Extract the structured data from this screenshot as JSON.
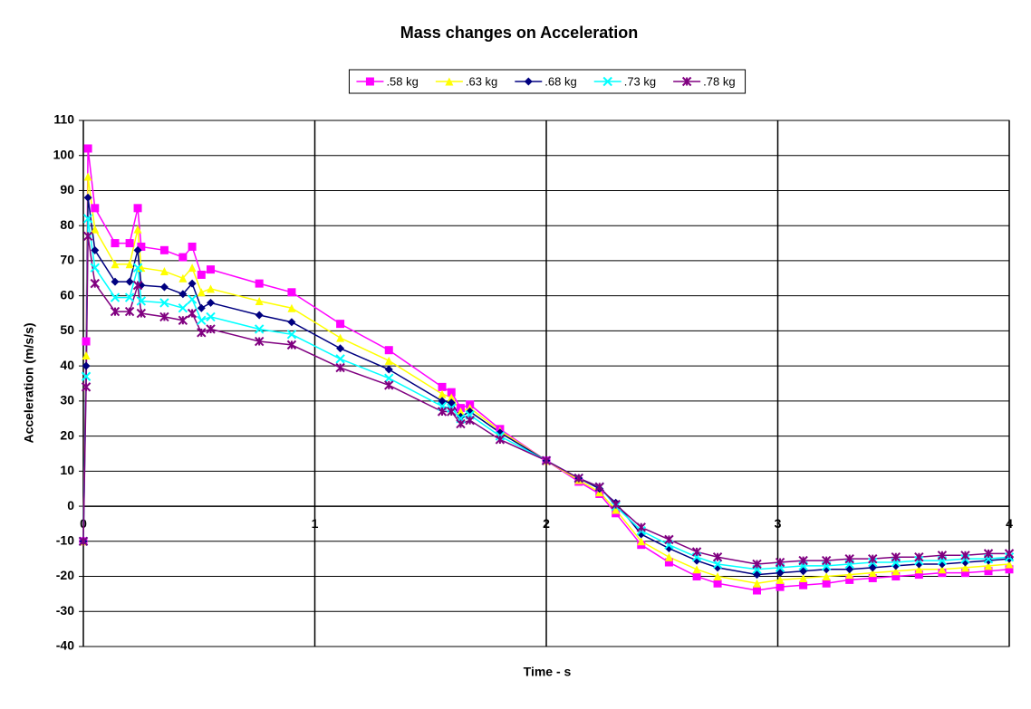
{
  "chart_data": {
    "type": "line",
    "title": "Mass changes on Acceleration",
    "x_label": "Time - s",
    "y_label": "Acceleration (m/s/s)",
    "x": [
      0,
      0.012,
      0.02,
      0.05,
      0.137,
      0.2,
      0.235,
      0.25,
      0.35,
      0.43,
      0.47,
      0.51,
      0.55,
      0.76,
      0.9,
      1.11,
      1.32,
      1.55,
      1.59,
      1.63,
      1.67,
      1.8,
      2.0,
      2.14,
      2.23,
      2.3,
      2.41,
      2.53,
      2.65,
      2.74,
      2.91,
      3.01,
      3.11,
      3.21,
      3.31,
      3.41,
      3.51,
      3.61,
      3.71,
      3.81,
      3.91,
      4.0
    ],
    "series": [
      {
        "name": ".58 kg",
        "color": "#ff00ff",
        "marker": "square",
        "values": [
          -10,
          47,
          102,
          85,
          75,
          75,
          85,
          74,
          73,
          71,
          74,
          66,
          67.5,
          63.5,
          61,
          52,
          44.5,
          34,
          32.5,
          28,
          29,
          22,
          13,
          7,
          3.5,
          -2,
          -11,
          -16,
          -20,
          -22,
          -24,
          -23,
          -22.5,
          -22,
          -21,
          -20.5,
          -20,
          -19.5,
          -19,
          -19,
          -18.5,
          -18
        ]
      },
      {
        "name": ".63 kg",
        "color": "#ffff00",
        "marker": "triangle",
        "values": [
          -10,
          43,
          94,
          79,
          69,
          69,
          79,
          68,
          67,
          65,
          68,
          61,
          62,
          58.5,
          56.5,
          48,
          41.5,
          32,
          31,
          27,
          28,
          21.5,
          13,
          7.5,
          4,
          -1,
          -10,
          -14.5,
          -18,
          -20,
          -22,
          -21,
          -20.5,
          -20,
          -19.5,
          -19,
          -18.5,
          -18,
          -18,
          -17.5,
          -17,
          -16.5
        ]
      },
      {
        "name": ".68 kg",
        "color": "#000080",
        "marker": "diamond",
        "values": [
          -10,
          40,
          88,
          73,
          64,
          64,
          73,
          63,
          62.5,
          60.5,
          63.5,
          56.5,
          58,
          54.5,
          52.5,
          45,
          39,
          30,
          29.5,
          25.5,
          27,
          21,
          13,
          8,
          5,
          1,
          -8,
          -12,
          -15.5,
          -17.5,
          -19.5,
          -19,
          -18.5,
          -18,
          -18,
          -17.5,
          -17,
          -16.5,
          -16.5,
          -16,
          -15.5,
          -15
        ]
      },
      {
        "name": ".73 kg",
        "color": "#00ffff",
        "marker": "x",
        "values": [
          -10,
          37,
          82,
          68,
          59.5,
          59.5,
          68,
          58.5,
          58,
          56.5,
          59,
          53,
          54,
          50.5,
          49,
          42,
          36.5,
          28.5,
          28,
          25,
          26,
          20,
          13,
          8,
          5.5,
          0,
          -7,
          -11,
          -14.5,
          -16.5,
          -18,
          -17.5,
          -17,
          -17,
          -16.5,
          -16,
          -16,
          -15.5,
          -15.5,
          -15,
          -15,
          -14.5
        ]
      },
      {
        "name": ".78 kg",
        "color": "#800080",
        "marker": "star",
        "values": [
          -10,
          34,
          77,
          63.5,
          55.5,
          55.5,
          63,
          55,
          54,
          53,
          55,
          49.5,
          50.5,
          47,
          46,
          39.5,
          34.5,
          27,
          27,
          23.5,
          24.5,
          19,
          13,
          8,
          5.5,
          0.5,
          -6,
          -9.5,
          -13,
          -14.5,
          -16.5,
          -16,
          -15.5,
          -15.5,
          -15,
          -15,
          -14.5,
          -14.5,
          -14,
          -14,
          -13.5,
          -13.5
        ]
      }
    ],
    "xlim": [
      0,
      4
    ],
    "xticks": [
      0,
      1,
      2,
      3,
      4
    ],
    "ylim": [
      -40,
      110
    ],
    "yticks": [
      -40,
      -30,
      -20,
      -10,
      0,
      10,
      20,
      30,
      40,
      50,
      60,
      70,
      80,
      90,
      100,
      110
    ],
    "grid": true,
    "legend": "top"
  }
}
